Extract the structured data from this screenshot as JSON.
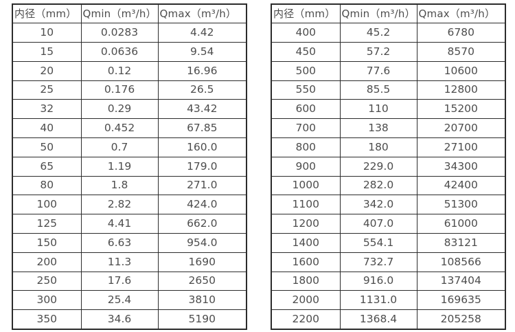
{
  "page": {
    "background": "#ffffff",
    "border_color": "#2b2b2b",
    "text_color": "#4d4d4d"
  },
  "tables": [
    {
      "name": "flow-range-table-small-diameters",
      "headers": [
        "内径（mm）",
        "Qmin（m³/h）",
        "Qmax（m³/h）"
      ],
      "rows": [
        [
          "10",
          "0.0283",
          "4.42"
        ],
        [
          "15",
          "0.0636",
          "9.54"
        ],
        [
          "20",
          "0.12",
          "16.96"
        ],
        [
          "25",
          "0.176",
          "26.5"
        ],
        [
          "32",
          "0.29",
          "43.42"
        ],
        [
          "40",
          "0.452",
          "67.85"
        ],
        [
          "50",
          "0.7",
          "160.0"
        ],
        [
          "65",
          "1.19",
          "179.0"
        ],
        [
          "80",
          "1.8",
          "271.0"
        ],
        [
          "100",
          "2.82",
          "424.0"
        ],
        [
          "125",
          "4.41",
          "662.0"
        ],
        [
          "150",
          "6.63",
          "954.0"
        ],
        [
          "200",
          "11.3",
          "1690"
        ],
        [
          "250",
          "17.6",
          "2650"
        ],
        [
          "300",
          "25.4",
          "3810"
        ],
        [
          "350",
          "34.6",
          "5190"
        ]
      ]
    },
    {
      "name": "flow-range-table-large-diameters",
      "headers": [
        "内径（mm）",
        "Qmin（m³/h）",
        "Qmax（m³/h）"
      ],
      "rows": [
        [
          "400",
          "45.2",
          "6780"
        ],
        [
          "450",
          "57.2",
          "8570"
        ],
        [
          "500",
          "77.6",
          "10600"
        ],
        [
          "550",
          "85.5",
          "12800"
        ],
        [
          "600",
          "110",
          "15200"
        ],
        [
          "700",
          "138",
          "20700"
        ],
        [
          "800",
          "180",
          "27100"
        ],
        [
          "900",
          "229.0",
          "34300"
        ],
        [
          "1000",
          "282.0",
          "42400"
        ],
        [
          "1100",
          "342.0",
          "51300"
        ],
        [
          "1200",
          "407.0",
          "61000"
        ],
        [
          "1400",
          "554.1",
          "83121"
        ],
        [
          "1600",
          "732.7",
          "108566"
        ],
        [
          "1800",
          "916.0",
          "137404"
        ],
        [
          "2000",
          "1131.0",
          "169635"
        ],
        [
          "2200",
          "1368.4",
          "205258"
        ]
      ]
    }
  ]
}
